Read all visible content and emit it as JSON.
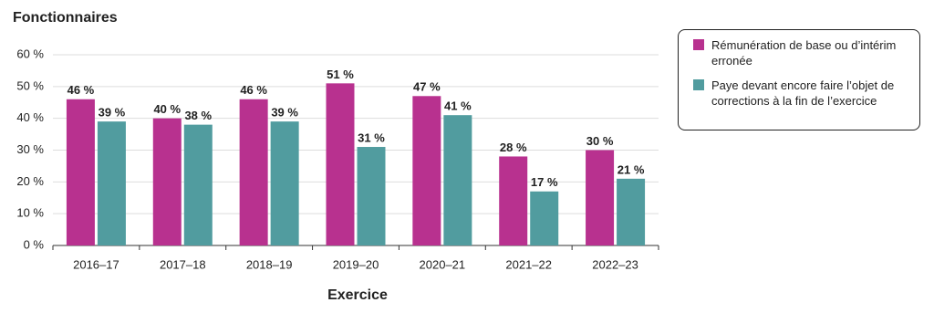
{
  "chart_data": {
    "type": "bar",
    "title": "Fonctionnaires",
    "x_label": "Exercice",
    "categories": [
      "2016–17",
      "2017–18",
      "2018–19",
      "2019–20",
      "2020–21",
      "2021–22",
      "2022–23"
    ],
    "series": [
      {
        "name": "Rémunération de base ou d’intérim erronée",
        "color": "#b8318f",
        "values": [
          46,
          40,
          46,
          51,
          47,
          28,
          30
        ],
        "value_labels": [
          "46 %",
          "40 %",
          "46 %",
          "51 %",
          "47 %",
          "28 %",
          "30 %"
        ]
      },
      {
        "name": "Paye devant encore faire l’objet de corrections à la fin de l’exercice",
        "color": "#519c9f",
        "values": [
          39,
          38,
          39,
          31,
          41,
          17,
          21
        ],
        "value_labels": [
          "39 %",
          "38 %",
          "39 %",
          "31 %",
          "41 %",
          "17 %",
          "21 %"
        ]
      }
    ],
    "ylim": [
      0,
      60
    ],
    "yticks": [
      {
        "value": 0,
        "label": "0 %"
      },
      {
        "value": 10,
        "label": "10 %"
      },
      {
        "value": 20,
        "label": "20 %"
      },
      {
        "value": 30,
        "label": "30 %"
      },
      {
        "value": 40,
        "label": "40 %"
      },
      {
        "value": 50,
        "label": "50 %"
      },
      {
        "value": 60,
        "label": "60 %"
      }
    ],
    "grid": true
  }
}
